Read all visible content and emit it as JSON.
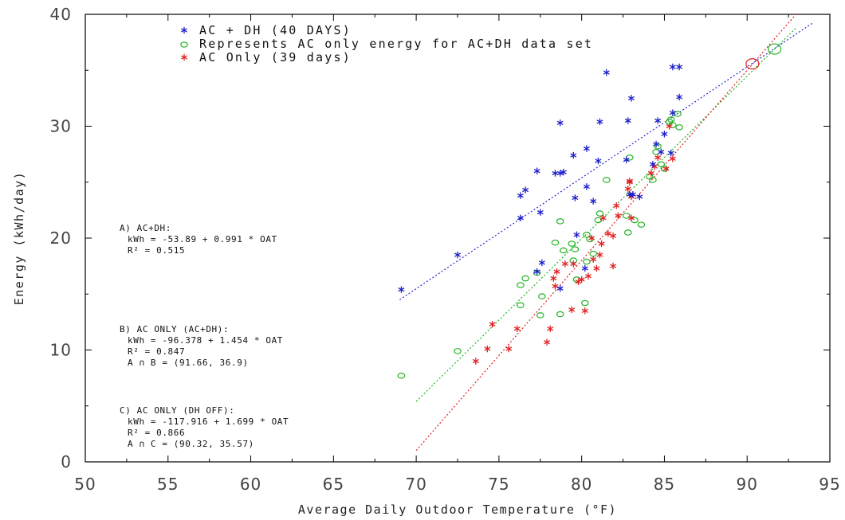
{
  "chart_data": {
    "type": "scatter",
    "xlabel": "Average Daily Outdoor Temperature (°F)",
    "ylabel": "Energy (kWh/day)",
    "xlim": [
      50,
      95
    ],
    "ylim": [
      0,
      40
    ],
    "xticks": [
      50,
      55,
      60,
      65,
      70,
      75,
      80,
      85,
      90,
      95
    ],
    "yticks": [
      0,
      10,
      20,
      30,
      40
    ],
    "grid": false,
    "legend_position": "top-left",
    "series": [
      {
        "name": "AC + DH (40 DAYS)",
        "marker": "asterisk",
        "color": "#1d1dcc",
        "points": [
          [
            69.1,
            15.4
          ],
          [
            72.5,
            18.5
          ],
          [
            76.3,
            21.8
          ],
          [
            76.3,
            23.8
          ],
          [
            76.6,
            24.3
          ],
          [
            77.3,
            26.0
          ],
          [
            77.5,
            22.3
          ],
          [
            77.6,
            17.8
          ],
          [
            77.3,
            17.0
          ],
          [
            78.4,
            25.8
          ],
          [
            78.7,
            25.8
          ],
          [
            78.9,
            25.9
          ],
          [
            78.7,
            30.3
          ],
          [
            78.7,
            15.5
          ],
          [
            79.5,
            27.4
          ],
          [
            79.6,
            23.6
          ],
          [
            79.7,
            20.3
          ],
          [
            80.2,
            17.3
          ],
          [
            80.3,
            24.6
          ],
          [
            80.3,
            28.0
          ],
          [
            80.7,
            23.3
          ],
          [
            81.0,
            26.9
          ],
          [
            81.1,
            30.4
          ],
          [
            81.5,
            34.8
          ],
          [
            82.7,
            27.0
          ],
          [
            82.8,
            30.5
          ],
          [
            82.9,
            23.9
          ],
          [
            83.0,
            32.5
          ],
          [
            83.5,
            23.7
          ],
          [
            84.3,
            26.6
          ],
          [
            84.5,
            28.4
          ],
          [
            84.6,
            30.5
          ],
          [
            84.8,
            27.7
          ],
          [
            85.0,
            29.3
          ],
          [
            85.4,
            27.6
          ],
          [
            85.5,
            31.2
          ],
          [
            85.5,
            35.3
          ],
          [
            85.9,
            35.3
          ],
          [
            85.9,
            32.6
          ],
          [
            83.1,
            23.9
          ]
        ]
      },
      {
        "name": "Represents AC only energy for AC+DH data set",
        "marker": "circle",
        "color": "#22b422",
        "points": [
          [
            69.1,
            7.7
          ],
          [
            72.5,
            9.9
          ],
          [
            76.3,
            15.8
          ],
          [
            76.3,
            14.0
          ],
          [
            76.6,
            16.4
          ],
          [
            77.3,
            16.9
          ],
          [
            77.5,
            13.1
          ],
          [
            77.6,
            14.8
          ],
          [
            78.4,
            19.6
          ],
          [
            78.7,
            21.5
          ],
          [
            78.7,
            13.2
          ],
          [
            78.9,
            18.9
          ],
          [
            79.4,
            19.5
          ],
          [
            79.5,
            18.0
          ],
          [
            79.6,
            19.0
          ],
          [
            79.7,
            16.3
          ],
          [
            80.2,
            14.2
          ],
          [
            80.3,
            17.9
          ],
          [
            80.3,
            20.3
          ],
          [
            80.5,
            19.9
          ],
          [
            80.7,
            18.6
          ],
          [
            81.0,
            21.6
          ],
          [
            81.1,
            22.2
          ],
          [
            81.5,
            25.2
          ],
          [
            82.7,
            22.0
          ],
          [
            82.8,
            20.5
          ],
          [
            82.9,
            27.2
          ],
          [
            83.2,
            21.6
          ],
          [
            83.6,
            21.2
          ],
          [
            84.3,
            25.2
          ],
          [
            84.5,
            27.7
          ],
          [
            84.6,
            28.2
          ],
          [
            84.8,
            26.6
          ],
          [
            85.0,
            26.2
          ],
          [
            85.4,
            30.6
          ],
          [
            85.5,
            30.1
          ],
          [
            85.8,
            31.1
          ],
          [
            85.9,
            29.9
          ],
          [
            85.3,
            30.4
          ],
          [
            84.1,
            25.5
          ]
        ]
      },
      {
        "name": "AC Only (39 days)",
        "marker": "asterisk",
        "color": "#e02020",
        "points": [
          [
            73.6,
            9.0
          ],
          [
            74.3,
            10.1
          ],
          [
            74.6,
            12.3
          ],
          [
            75.6,
            10.1
          ],
          [
            76.1,
            11.9
          ],
          [
            77.9,
            10.7
          ],
          [
            78.1,
            11.9
          ],
          [
            78.3,
            16.4
          ],
          [
            78.4,
            15.7
          ],
          [
            78.5,
            17.0
          ],
          [
            79.0,
            17.7
          ],
          [
            79.4,
            13.6
          ],
          [
            79.5,
            17.7
          ],
          [
            79.8,
            16.1
          ],
          [
            80.0,
            16.3
          ],
          [
            80.2,
            13.5
          ],
          [
            80.4,
            16.6
          ],
          [
            80.6,
            20.0
          ],
          [
            80.7,
            18.1
          ],
          [
            80.9,
            17.3
          ],
          [
            81.1,
            18.5
          ],
          [
            81.2,
            19.5
          ],
          [
            81.3,
            21.8
          ],
          [
            81.6,
            20.4
          ],
          [
            81.9,
            17.5
          ],
          [
            81.9,
            20.2
          ],
          [
            82.1,
            22.9
          ],
          [
            82.2,
            22.0
          ],
          [
            82.8,
            24.4
          ],
          [
            82.9,
            25.1
          ],
          [
            82.9,
            25.0
          ],
          [
            83.0,
            21.8
          ],
          [
            84.2,
            25.8
          ],
          [
            84.4,
            26.4
          ],
          [
            84.6,
            27.2
          ],
          [
            85.1,
            26.2
          ],
          [
            85.3,
            30.0
          ],
          [
            85.5,
            27.1
          ],
          [
            83.0,
            23.7
          ]
        ]
      }
    ],
    "fit_lines": [
      {
        "label": "A) AC+DH",
        "intercept": -53.89,
        "slope": 0.991,
        "x_from": 69.0,
        "x_to": 94.0,
        "color": "#2a2ad0"
      },
      {
        "label": "B) AC ONLY (AC+DH)",
        "intercept": -96.378,
        "slope": 1.454,
        "x_from": 70.0,
        "x_to": 93.0,
        "color": "#22b422"
      },
      {
        "label": "C) AC ONLY (DH OFF)",
        "intercept": -117.916,
        "slope": 1.699,
        "x_from": 70.0,
        "x_to": 93.0,
        "color": "#e02020"
      }
    ],
    "intersections": [
      {
        "x": 90.32,
        "y": 35.57,
        "color": "#e02020"
      },
      {
        "x": 91.66,
        "y": 36.9,
        "color": "#22b422"
      }
    ],
    "legend": [
      {
        "symbol": "*",
        "color": "#1d1dcc",
        "text": "AC + DH (40 DAYS)"
      },
      {
        "symbol": "o",
        "color": "#22b422",
        "text": "Represents AC only energy for AC+DH data set"
      },
      {
        "symbol": "*",
        "color": "#e02020",
        "text": "AC Only (39 days)"
      }
    ],
    "annotations": [
      {
        "lines": [
          "A) AC+DH:",
          "kWh = -53.89 + 0.991 * OAT",
          "R² = 0.515"
        ]
      },
      {
        "lines": [
          "B) AC ONLY (AC+DH):",
          "kWh = -96.378 + 1.454 * OAT",
          "R² = 0.847",
          "A ∩ B = (91.66, 36.9)"
        ]
      },
      {
        "lines": [
          "C) AC ONLY (DH OFF):",
          "kWh = -117.916 + 1.699 * OAT",
          "R² = 0.866",
          "A ∩ C = (90.32, 35.57)"
        ]
      }
    ]
  }
}
